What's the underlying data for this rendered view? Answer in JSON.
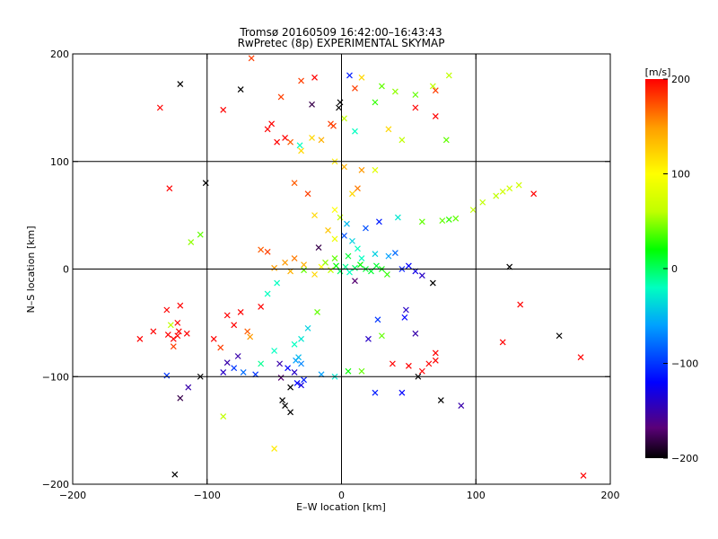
{
  "chart_data": {
    "type": "scatter",
    "title": "Tromsø 20160509 16:42:00–16:43:43",
    "subtitle": "RwPretec (8p) EXPERIMENTAL SKYMAP",
    "xlabel": "E–W location [km]",
    "ylabel": "N–S location [km]",
    "xlim": [
      -200,
      200
    ],
    "ylim": [
      -200,
      200
    ],
    "xticks": [
      "−200",
      "−100",
      "0",
      "100",
      "200"
    ],
    "yticks": [
      "200",
      "100",
      "0",
      "−100",
      "−200"
    ],
    "grid": true,
    "colorbar": {
      "label": "[m/s]",
      "range": [
        -200,
        200
      ],
      "ticks": [
        "200",
        "100",
        "0",
        "−100",
        "−200"
      ],
      "colors": [
        "#000000",
        "#5a0078",
        "#0000ff",
        "#00a0ff",
        "#00ffc0",
        "#00ff00",
        "#c0ff00",
        "#ffff00",
        "#ffa000",
        "#ff0000"
      ]
    },
    "series": [
      {
        "marker": "x",
        "points": [
          [
            -67,
            196,
            180
          ],
          [
            -45,
            160,
            180
          ],
          [
            -52,
            135,
            200
          ],
          [
            -22,
            153,
            -180
          ],
          [
            -1,
            155,
            -200
          ],
          [
            -2,
            150,
            -200
          ],
          [
            -31,
            115,
            -20
          ],
          [
            -6,
            133,
            180
          ],
          [
            -128,
            75,
            200
          ],
          [
            -25,
            70,
            180
          ],
          [
            -10,
            36,
            130
          ],
          [
            -5,
            28,
            90
          ],
          [
            -112,
            25,
            50
          ],
          [
            -105,
            32,
            40
          ],
          [
            -17,
            20,
            -180
          ],
          [
            -55,
            16,
            180
          ],
          [
            -60,
            18,
            170
          ],
          [
            -35,
            10,
            160
          ],
          [
            -42,
            6,
            150
          ],
          [
            -28,
            4,
            140
          ],
          [
            -15,
            2,
            100
          ],
          [
            -50,
            1,
            150
          ],
          [
            -38,
            -2,
            140
          ],
          [
            -20,
            -5,
            120
          ],
          [
            -8,
            -1,
            60
          ],
          [
            -4,
            3,
            20
          ],
          [
            -1,
            -2,
            0
          ],
          [
            3,
            2,
            -10
          ],
          [
            6,
            -3,
            -20
          ],
          [
            10,
            1,
            0
          ],
          [
            14,
            4,
            20
          ],
          [
            18,
            0,
            10
          ],
          [
            22,
            -2,
            10
          ],
          [
            26,
            3,
            10
          ],
          [
            30,
            0,
            20
          ],
          [
            34,
            -5,
            30
          ],
          [
            12,
            19,
            -20
          ],
          [
            8,
            26,
            -40
          ],
          [
            2,
            31,
            -90
          ],
          [
            18,
            38,
            -90
          ],
          [
            28,
            44,
            -110
          ],
          [
            42,
            48,
            -30
          ],
          [
            60,
            44,
            40
          ],
          [
            75,
            45,
            40
          ],
          [
            80,
            46,
            30
          ],
          [
            85,
            47,
            40
          ],
          [
            98,
            55,
            60
          ],
          [
            105,
            62,
            60
          ],
          [
            115,
            68,
            60
          ],
          [
            120,
            72,
            70
          ],
          [
            125,
            75,
            70
          ],
          [
            132,
            78,
            70
          ],
          [
            45,
            0,
            -110
          ],
          [
            50,
            3,
            -120
          ],
          [
            55,
            -2,
            -130
          ],
          [
            60,
            -6,
            -140
          ],
          [
            68,
            -13,
            -200
          ],
          [
            10,
            -11,
            -170
          ],
          [
            47,
            -45,
            -120
          ],
          [
            27,
            -47,
            -100
          ],
          [
            30,
            -62,
            40
          ],
          [
            -48,
            -13,
            -20
          ],
          [
            -55,
            -23,
            -20
          ],
          [
            -18,
            -40,
            40
          ],
          [
            -25,
            -55,
            -40
          ],
          [
            -30,
            -65,
            -30
          ],
          [
            -35,
            -70,
            -20
          ],
          [
            -50,
            -76,
            -20
          ],
          [
            -60,
            -88,
            -10
          ],
          [
            -46,
            -88,
            -150
          ],
          [
            -40,
            -92,
            -120
          ],
          [
            -35,
            -96,
            -140
          ],
          [
            -45,
            -101,
            -170
          ],
          [
            -38,
            -110,
            -200
          ],
          [
            -44,
            -122,
            -200
          ],
          [
            -38,
            -133,
            -200
          ],
          [
            -42,
            -127,
            -200
          ],
          [
            -33,
            -106,
            -120
          ],
          [
            -30,
            -108,
            -130
          ],
          [
            -28,
            -103,
            -110
          ],
          [
            -34,
            -85,
            -60
          ],
          [
            -32,
            -82,
            -50
          ],
          [
            -30,
            -88,
            -70
          ],
          [
            -120,
            -34,
            200
          ],
          [
            -127,
            -52,
            60
          ],
          [
            -129,
            -61,
            200
          ],
          [
            -125,
            -65,
            200
          ],
          [
            -122,
            -62,
            200
          ],
          [
            -121,
            -58,
            200
          ],
          [
            -115,
            -60,
            200
          ],
          [
            -125,
            -72,
            180
          ],
          [
            -130,
            -99,
            -100
          ],
          [
            -88,
            -137,
            60
          ],
          [
            -50,
            -167,
            110
          ],
          [
            -124,
            -191,
            -200
          ],
          [
            -80,
            -52,
            200
          ],
          [
            -85,
            -43,
            200
          ],
          [
            -75,
            -40,
            200
          ],
          [
            -70,
            -58,
            170
          ],
          [
            -68,
            -63,
            150
          ],
          [
            -85,
            -87,
            -150
          ],
          [
            -80,
            -92,
            -100
          ],
          [
            -73,
            -96,
            -80
          ],
          [
            -64,
            -98,
            -100
          ],
          [
            -88,
            -96,
            -140
          ],
          [
            -77,
            -81,
            -150
          ],
          [
            80,
            180,
            60
          ],
          [
            68,
            170,
            60
          ],
          [
            55,
            162,
            40
          ],
          [
            40,
            165,
            50
          ],
          [
            30,
            170,
            40
          ],
          [
            25,
            155,
            30
          ],
          [
            70,
            166,
            180
          ],
          [
            55,
            150,
            200
          ],
          [
            70,
            142,
            200
          ],
          [
            78,
            120,
            40
          ],
          [
            45,
            120,
            60
          ],
          [
            35,
            130,
            120
          ],
          [
            10,
            128,
            -20
          ],
          [
            2,
            140,
            60
          ],
          [
            -8,
            135,
            180
          ],
          [
            -15,
            120,
            140
          ],
          [
            -22,
            122,
            120
          ],
          [
            -38,
            118,
            170
          ],
          [
            -42,
            122,
            200
          ],
          [
            -48,
            118,
            200
          ],
          [
            -30,
            110,
            120
          ],
          [
            -5,
            100,
            110
          ],
          [
            2,
            95,
            140
          ],
          [
            15,
            92,
            150
          ],
          [
            25,
            92,
            80
          ],
          [
            12,
            75,
            160
          ],
          [
            8,
            70,
            120
          ],
          [
            -35,
            80,
            170
          ],
          [
            -5,
            55,
            100
          ],
          [
            -1,
            48,
            60
          ],
          [
            4,
            42,
            -50
          ],
          [
            -20,
            50,
            120
          ],
          [
            48,
            -38,
            -140
          ],
          [
            20,
            -65,
            -140
          ],
          [
            55,
            -60,
            -150
          ],
          [
            70,
            -78,
            200
          ],
          [
            70,
            -85,
            200
          ],
          [
            -28,
            -1,
            40
          ],
          [
            -12,
            6,
            50
          ],
          [
            -5,
            10,
            40
          ],
          [
            5,
            12,
            10
          ],
          [
            15,
            10,
            -20
          ],
          [
            25,
            14,
            -40
          ],
          [
            35,
            12,
            -60
          ],
          [
            40,
            15,
            -80
          ],
          [
            -60,
            -35,
            200
          ],
          [
            -90,
            -73,
            180
          ],
          [
            -95,
            -65,
            200
          ],
          [
            -105,
            -100,
            -200
          ],
          [
            -130,
            -38,
            200
          ],
          [
            -122,
            -50,
            200
          ],
          [
            -140,
            -58,
            200
          ],
          [
            -120,
            -120,
            -180
          ],
          [
            -114,
            -110,
            -150
          ],
          [
            38,
            -88,
            200
          ],
          [
            50,
            -90,
            200
          ],
          [
            60,
            -95,
            200
          ],
          [
            65,
            -88,
            200
          ],
          [
            15,
            -95,
            40
          ],
          [
            5,
            -95,
            20
          ],
          [
            -5,
            -100,
            -30
          ],
          [
            -15,
            -98,
            -60
          ],
          [
            89,
            -127,
            -150
          ],
          [
            74,
            -122,
            -200
          ],
          [
            57,
            -100,
            -200
          ],
          [
            45,
            -115,
            -120
          ],
          [
            25,
            -115,
            -110
          ],
          [
            180,
            -192,
            200
          ],
          [
            162,
            -62,
            -200
          ],
          [
            125,
            2,
            -200
          ],
          [
            143,
            70,
            200
          ],
          [
            178,
            -82,
            200
          ],
          [
            133,
            -33,
            200
          ],
          [
            120,
            -68,
            200
          ],
          [
            -150,
            -65,
            200
          ],
          [
            -135,
            150,
            200
          ],
          [
            -120,
            172,
            -200
          ],
          [
            -101,
            80,
            -200
          ],
          [
            -75,
            167,
            -200
          ],
          [
            -88,
            148,
            200
          ],
          [
            -55,
            130,
            200
          ],
          [
            -30,
            175,
            180
          ],
          [
            -20,
            178,
            200
          ],
          [
            6,
            180,
            -110
          ],
          [
            15,
            178,
            120
          ],
          [
            10,
            168,
            180
          ]
        ]
      }
    ]
  }
}
